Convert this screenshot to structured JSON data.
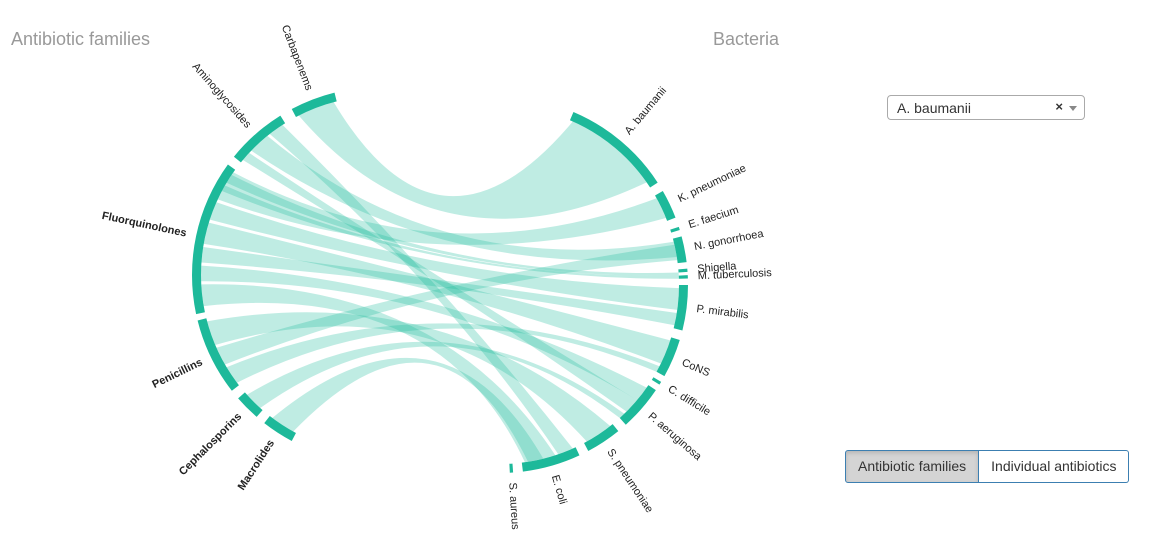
{
  "headings": {
    "left": "Antibiotic families",
    "right": "Bacteria"
  },
  "antibiotic_families": [
    {
      "label": "Carbapenems",
      "bold": false
    },
    {
      "label": "Aminoglycosides",
      "bold": false
    },
    {
      "label": "Fluorquinolones",
      "bold": true
    },
    {
      "label": "Penicillins",
      "bold": true
    },
    {
      "label": "Cephalosporins",
      "bold": true
    },
    {
      "label": "Macrolides",
      "bold": true
    }
  ],
  "bacteria": [
    "A. baumanii",
    "K. pneumoniae",
    "E. faecium",
    "N. gonorrhoea",
    "Shigella",
    "M. tuberculosis",
    "P. mirabilis",
    "CoNS",
    "C. difficile",
    "P. aeruginosa",
    "S. pneumoniae",
    "E. coli",
    "S. aureus"
  ],
  "dropdown": {
    "selected": "A. baumanii",
    "clear": "×"
  },
  "buttons": [
    "Antibiotic families",
    "Individual antibiotics"
  ]
}
